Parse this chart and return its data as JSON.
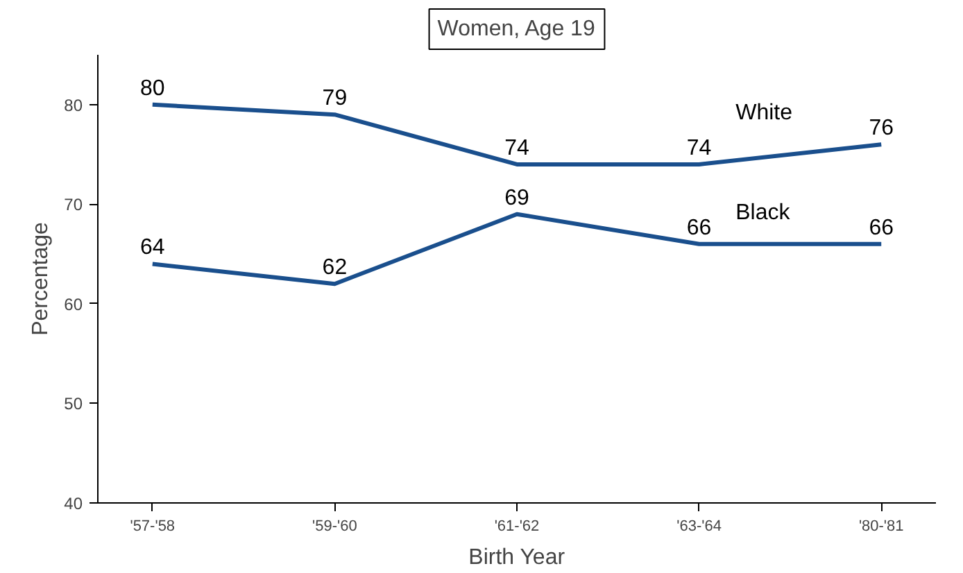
{
  "chart_data": {
    "type": "line",
    "title": "Women, Age 19",
    "xlabel": "Birth Year",
    "ylabel": "Percentage",
    "categories": [
      "'57-'58",
      "'59-'60",
      "'61-'62",
      "'63-'64",
      "'80-'81"
    ],
    "series": [
      {
        "name": "White",
        "color": "#1a4f8d",
        "values": [
          80,
          79,
          74,
          74,
          76
        ]
      },
      {
        "name": "Black",
        "color": "#1a4f8d",
        "values": [
          64,
          62,
          69,
          66,
          66
        ]
      }
    ],
    "ylim": [
      40,
      85
    ],
    "yticks": [
      40,
      50,
      60,
      70,
      80
    ],
    "data_labels": true,
    "legend": false,
    "grid": false,
    "marker": "none",
    "line_style": "solid"
  }
}
